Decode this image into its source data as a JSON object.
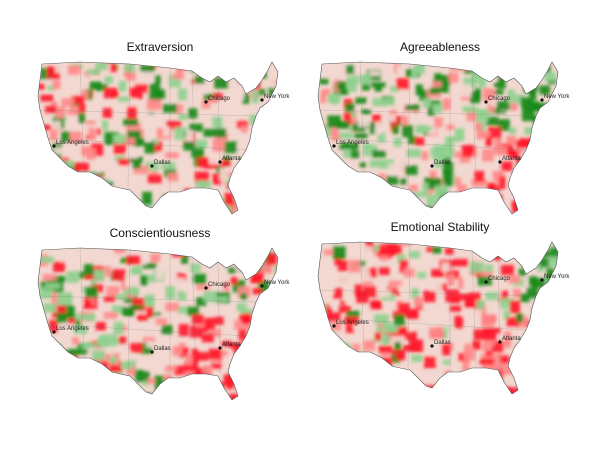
{
  "panels": [
    {
      "title": "Extraversion",
      "dominant": "mixed",
      "southeast": "mixed",
      "cities": [
        "Chicago",
        "New York",
        "Atlanta",
        "Los Angeles",
        "Dallas"
      ]
    },
    {
      "title": "Agreeableness",
      "dominant": "green",
      "southeast": "red",
      "cities": [
        "Chicago",
        "New York",
        "Atlanta",
        "Los Angeles",
        "Dallas"
      ]
    },
    {
      "title": "Conscientiousness",
      "dominant": "mixed",
      "southeast": "red",
      "cities": [
        "Chicago",
        "New York",
        "Atlanta",
        "Los Angeles",
        "Dallas"
      ]
    },
    {
      "title": "Emotional Stability",
      "dominant": "red",
      "southeast": "red",
      "cities": [
        "Chicago",
        "New York",
        "Atlanta",
        "Los Angeles",
        "Dallas"
      ]
    }
  ],
  "colors": {
    "high": "#1a8a1a",
    "mid_high": "#8fd08f",
    "neutral": "#f2d8d0",
    "mid_low": "#ff8a8a",
    "low": "#ff1a2a"
  }
}
